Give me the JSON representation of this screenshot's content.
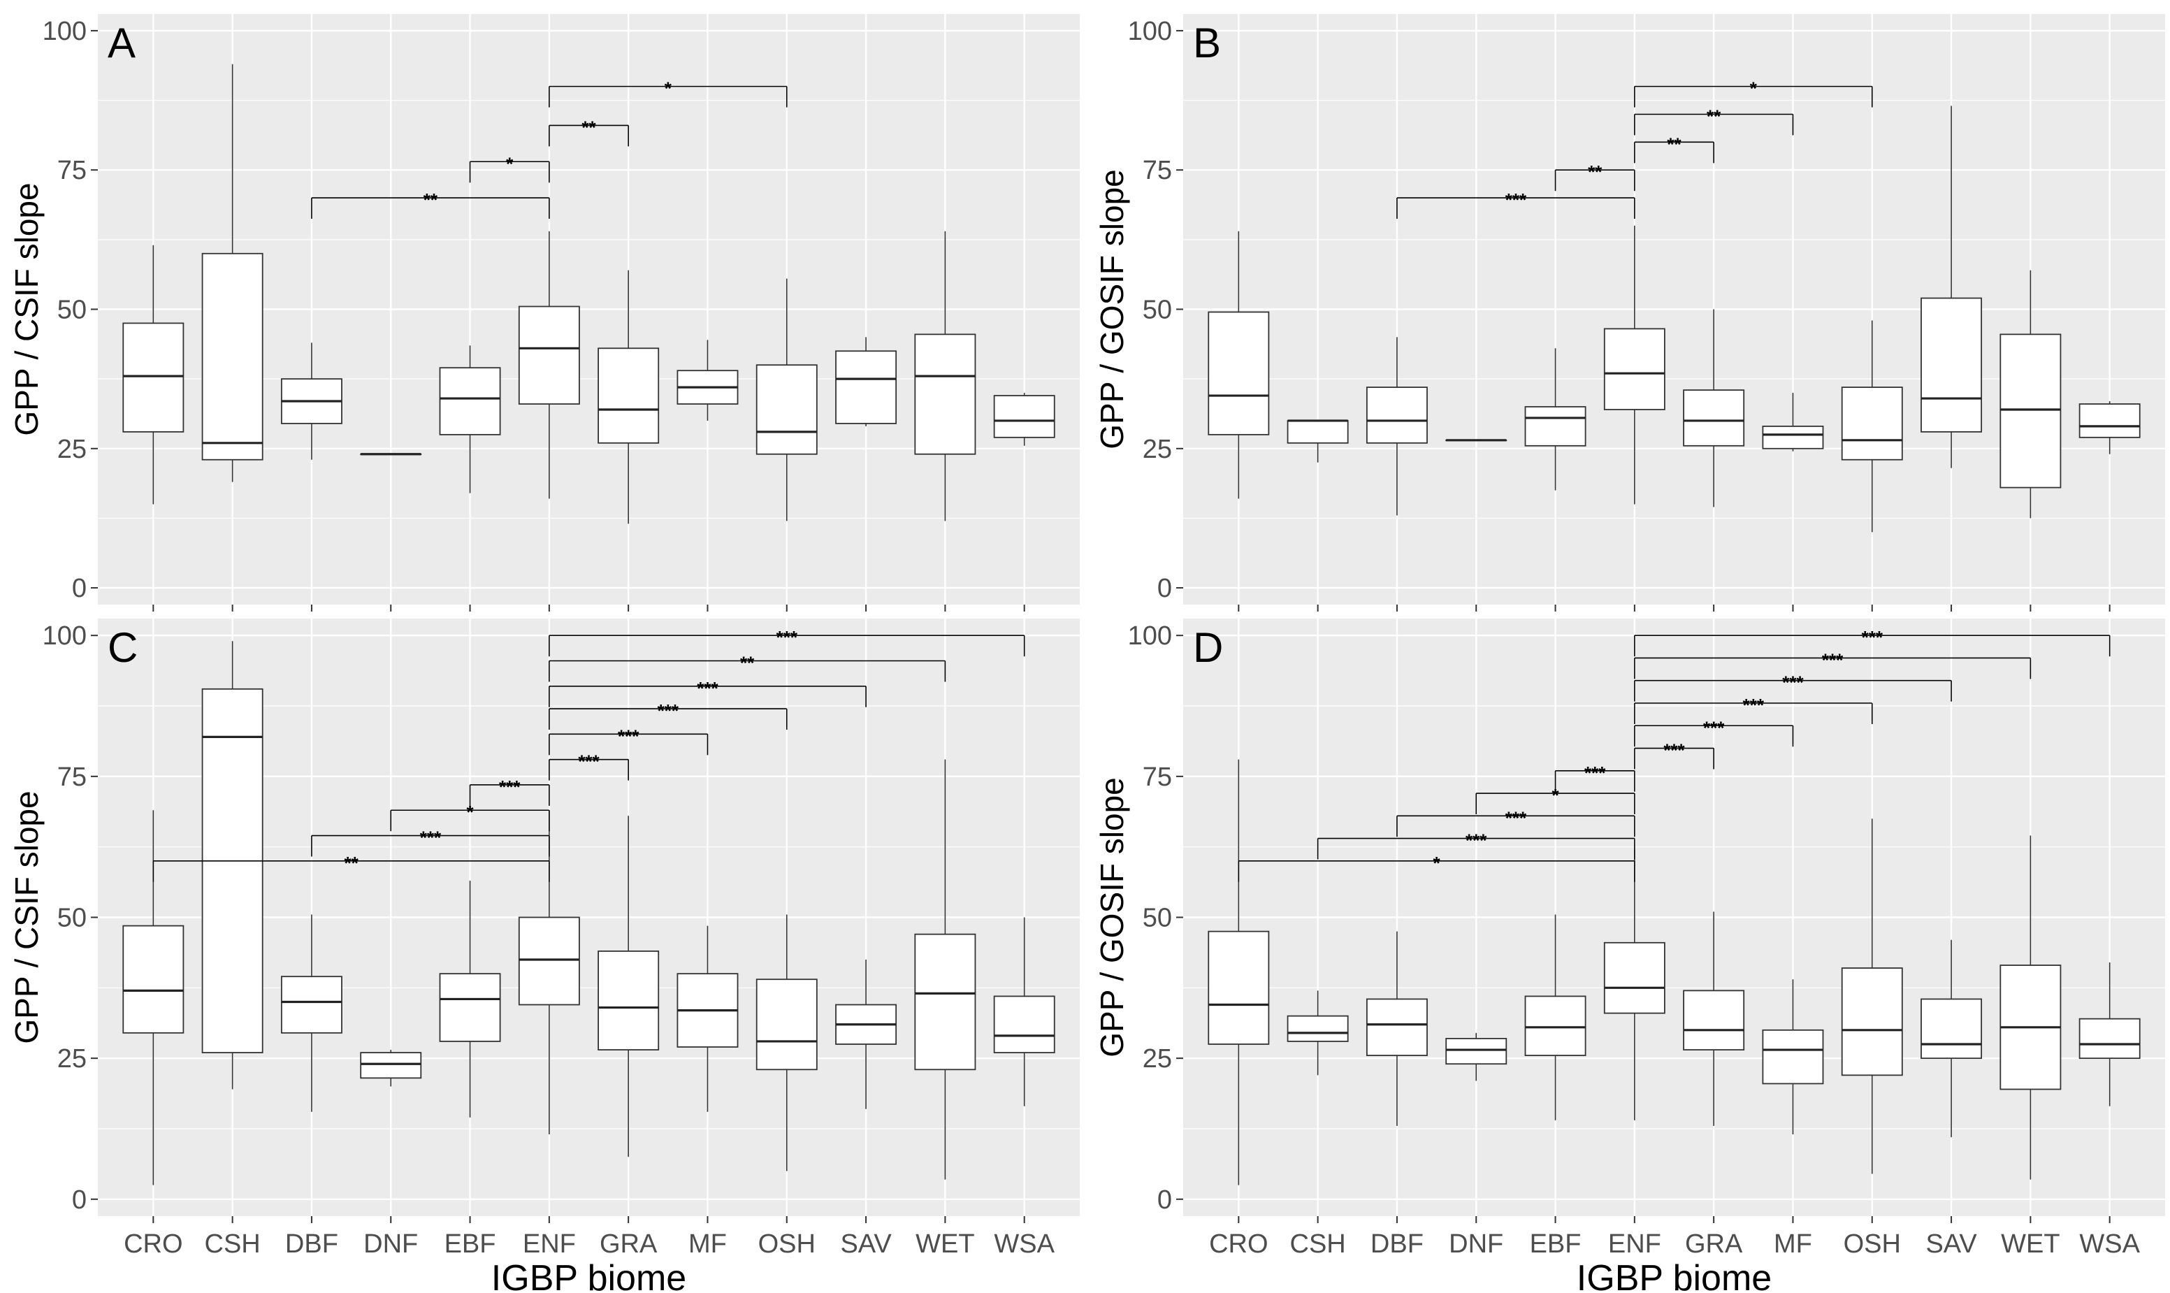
{
  "colors": {
    "panel_bg": "#ebebeb",
    "grid": "#ffffff",
    "box_fill": "#ffffff",
    "box_stroke": "#333333",
    "whisker": "#333333",
    "bracket": "#000000",
    "tick_text": "#4d4d4d"
  },
  "chart_data": [
    {
      "type": "boxplot",
      "panel_label": "A",
      "ylabel": "GPP / CSIF slope",
      "xlabel": "",
      "ylim": [
        -3,
        103
      ],
      "yticks": [
        0,
        25,
        50,
        75,
        100
      ],
      "categories": [
        "CRO",
        "CSH",
        "DBF",
        "DNF",
        "EBF",
        "ENF",
        "GRA",
        "MF",
        "OSH",
        "SAV",
        "WET",
        "WSA"
      ],
      "boxes": [
        {
          "min": 15,
          "q1": 28,
          "median": 38,
          "q3": 47.5,
          "max": 61.5
        },
        {
          "min": 19,
          "q1": 23,
          "median": 26,
          "q3": 60,
          "max": 94
        },
        {
          "min": 23,
          "q1": 29.5,
          "median": 33.5,
          "q3": 37.5,
          "max": 44
        },
        {
          "min": 24,
          "q1": 24,
          "median": 24,
          "q3": 24,
          "max": 24
        },
        {
          "min": 17,
          "q1": 27.5,
          "median": 34,
          "q3": 39.5,
          "max": 43.5
        },
        {
          "min": 16,
          "q1": 33,
          "median": 43,
          "q3": 50.5,
          "max": 64
        },
        {
          "min": 11.5,
          "q1": 26,
          "median": 32,
          "q3": 43,
          "max": 57
        },
        {
          "min": 30,
          "q1": 33,
          "median": 36,
          "q3": 39,
          "max": 44.5
        },
        {
          "min": 12,
          "q1": 24,
          "median": 28,
          "q3": 40,
          "max": 55.5
        },
        {
          "min": 29,
          "q1": 29.5,
          "median": 37.5,
          "q3": 42.5,
          "max": 45
        },
        {
          "min": 12,
          "q1": 24,
          "median": 38,
          "q3": 45.5,
          "max": 64
        },
        {
          "min": 25.5,
          "q1": 27,
          "median": 30,
          "q3": 34.5,
          "max": 35
        }
      ],
      "comparisons": [
        {
          "from": "ENF",
          "to": "OSH",
          "level": 90,
          "label": "*"
        },
        {
          "from": "ENF",
          "to": "GRA",
          "level": 83,
          "label": "**"
        },
        {
          "from": "EBF",
          "to": "ENF",
          "level": 76.5,
          "label": "*"
        },
        {
          "from": "DBF",
          "to": "ENF",
          "level": 70,
          "label": "**"
        }
      ]
    },
    {
      "type": "boxplot",
      "panel_label": "B",
      "ylabel": "GPP / GOSIF slope",
      "xlabel": "",
      "ylim": [
        -3,
        103
      ],
      "yticks": [
        0,
        25,
        50,
        75,
        100
      ],
      "categories": [
        "CRO",
        "CSH",
        "DBF",
        "DNF",
        "EBF",
        "ENF",
        "GRA",
        "MF",
        "OSH",
        "SAV",
        "WET",
        "WSA"
      ],
      "boxes": [
        {
          "min": 16,
          "q1": 27.5,
          "median": 34.5,
          "q3": 49.5,
          "max": 64
        },
        {
          "min": 22.5,
          "q1": 26,
          "median": 30,
          "q3": 30,
          "max": 30
        },
        {
          "min": 13,
          "q1": 26,
          "median": 30,
          "q3": 36,
          "max": 45
        },
        {
          "min": 26.5,
          "q1": 26.5,
          "median": 26.5,
          "q3": 26.5,
          "max": 26.5
        },
        {
          "min": 17.5,
          "q1": 25.5,
          "median": 30.5,
          "q3": 32.5,
          "max": 43
        },
        {
          "min": 15,
          "q1": 32,
          "median": 38.5,
          "q3": 46.5,
          "max": 65
        },
        {
          "min": 14.5,
          "q1": 25.5,
          "median": 30,
          "q3": 35.5,
          "max": 50
        },
        {
          "min": 24.5,
          "q1": 25,
          "median": 27.5,
          "q3": 29,
          "max": 35
        },
        {
          "min": 10,
          "q1": 23,
          "median": 26.5,
          "q3": 36,
          "max": 48
        },
        {
          "min": 21.5,
          "q1": 28,
          "median": 34,
          "q3": 52,
          "max": 86.5
        },
        {
          "min": 12.5,
          "q1": 18,
          "median": 32,
          "q3": 45.5,
          "max": 57
        },
        {
          "min": 24,
          "q1": 27,
          "median": 29,
          "q3": 33,
          "max": 33.5
        }
      ],
      "comparisons": [
        {
          "from": "ENF",
          "to": "OSH",
          "level": 90,
          "label": "*"
        },
        {
          "from": "ENF",
          "to": "MF",
          "level": 85,
          "label": "**"
        },
        {
          "from": "ENF",
          "to": "GRA",
          "level": 80,
          "label": "**"
        },
        {
          "from": "EBF",
          "to": "ENF",
          "level": 75,
          "label": "**"
        },
        {
          "from": "DBF",
          "to": "ENF",
          "level": 70,
          "label": "***"
        }
      ]
    },
    {
      "type": "boxplot",
      "panel_label": "C",
      "ylabel": "GPP / CSIF slope",
      "xlabel": "IGBP biome",
      "ylim": [
        -3,
        103
      ],
      "yticks": [
        0,
        25,
        50,
        75,
        100
      ],
      "categories": [
        "CRO",
        "CSH",
        "DBF",
        "DNF",
        "EBF",
        "ENF",
        "GRA",
        "MF",
        "OSH",
        "SAV",
        "WET",
        "WSA"
      ],
      "boxes": [
        {
          "min": 2.5,
          "q1": 29.5,
          "median": 37,
          "q3": 48.5,
          "max": 69
        },
        {
          "min": 19.5,
          "q1": 26,
          "median": 82,
          "q3": 90.5,
          "max": 99
        },
        {
          "min": 15.5,
          "q1": 29.5,
          "median": 35,
          "q3": 39.5,
          "max": 50.5
        },
        {
          "min": 20,
          "q1": 21.5,
          "median": 24,
          "q3": 26,
          "max": 26.5
        },
        {
          "min": 14.5,
          "q1": 28,
          "median": 35.5,
          "q3": 40,
          "max": 56.5
        },
        {
          "min": 11.5,
          "q1": 34.5,
          "median": 42.5,
          "q3": 50,
          "max": 69
        },
        {
          "min": 7.5,
          "q1": 26.5,
          "median": 34,
          "q3": 44,
          "max": 68
        },
        {
          "min": 15.5,
          "q1": 27,
          "median": 33.5,
          "q3": 40,
          "max": 48.5
        },
        {
          "min": 5,
          "q1": 23,
          "median": 28,
          "q3": 39,
          "max": 50.5
        },
        {
          "min": 16,
          "q1": 27.5,
          "median": 31,
          "q3": 34.5,
          "max": 42.5
        },
        {
          "min": 3.5,
          "q1": 23,
          "median": 36.5,
          "q3": 47,
          "max": 78
        },
        {
          "min": 16.5,
          "q1": 26,
          "median": 29,
          "q3": 36,
          "max": 50
        }
      ],
      "comparisons": [
        {
          "from": "ENF",
          "to": "WSA",
          "level": 100,
          "label": "***"
        },
        {
          "from": "ENF",
          "to": "WET",
          "level": 95.5,
          "label": "**"
        },
        {
          "from": "ENF",
          "to": "SAV",
          "level": 91,
          "label": "***"
        },
        {
          "from": "ENF",
          "to": "OSH",
          "level": 87,
          "label": "***"
        },
        {
          "from": "ENF",
          "to": "MF",
          "level": 82.5,
          "label": "***"
        },
        {
          "from": "ENF",
          "to": "GRA",
          "level": 78,
          "label": "***"
        },
        {
          "from": "EBF",
          "to": "ENF",
          "level": 73.5,
          "label": "***"
        },
        {
          "from": "DNF",
          "to": "ENF",
          "level": 69,
          "label": "*"
        },
        {
          "from": "DBF",
          "to": "ENF",
          "level": 64.5,
          "label": "***"
        },
        {
          "from": "CRO",
          "to": "ENF",
          "level": 60,
          "label": "**"
        }
      ]
    },
    {
      "type": "boxplot",
      "panel_label": "D",
      "ylabel": "GPP / GOSIF slope",
      "xlabel": "IGBP biome",
      "ylim": [
        -3,
        103
      ],
      "yticks": [
        0,
        25,
        50,
        75,
        100
      ],
      "categories": [
        "CRO",
        "CSH",
        "DBF",
        "DNF",
        "EBF",
        "ENF",
        "GRA",
        "MF",
        "OSH",
        "SAV",
        "WET",
        "WSA"
      ],
      "boxes": [
        {
          "min": 2.5,
          "q1": 27.5,
          "median": 34.5,
          "q3": 47.5,
          "max": 78
        },
        {
          "min": 22,
          "q1": 28,
          "median": 29.5,
          "q3": 32.5,
          "max": 37
        },
        {
          "min": 13,
          "q1": 25.5,
          "median": 31,
          "q3": 35.5,
          "max": 47.5
        },
        {
          "min": 21,
          "q1": 24,
          "median": 26.5,
          "q3": 28.5,
          "max": 29.5
        },
        {
          "min": 14,
          "q1": 25.5,
          "median": 30.5,
          "q3": 36,
          "max": 50.5
        },
        {
          "min": 14,
          "q1": 33,
          "median": 37.5,
          "q3": 45.5,
          "max": 62
        },
        {
          "min": 13,
          "q1": 26.5,
          "median": 30,
          "q3": 37,
          "max": 51
        },
        {
          "min": 11.5,
          "q1": 20.5,
          "median": 26.5,
          "q3": 30,
          "max": 39
        },
        {
          "min": 4.5,
          "q1": 22,
          "median": 30,
          "q3": 41,
          "max": 67.5
        },
        {
          "min": 11,
          "q1": 25,
          "median": 27.5,
          "q3": 35.5,
          "max": 46
        },
        {
          "min": 3.5,
          "q1": 19.5,
          "median": 30.5,
          "q3": 41.5,
          "max": 64.5
        },
        {
          "min": 16.5,
          "q1": 25,
          "median": 27.5,
          "q3": 32,
          "max": 42
        }
      ],
      "comparisons": [
        {
          "from": "ENF",
          "to": "WSA",
          "level": 100,
          "label": "***"
        },
        {
          "from": "ENF",
          "to": "WET",
          "level": 96,
          "label": "***"
        },
        {
          "from": "ENF",
          "to": "SAV",
          "level": 92,
          "label": "***"
        },
        {
          "from": "ENF",
          "to": "OSH",
          "level": 88,
          "label": "***"
        },
        {
          "from": "ENF",
          "to": "MF",
          "level": 84,
          "label": "***"
        },
        {
          "from": "ENF",
          "to": "GRA",
          "level": 80,
          "label": "***"
        },
        {
          "from": "EBF",
          "to": "ENF",
          "level": 76,
          "label": "***"
        },
        {
          "from": "DNF",
          "to": "ENF",
          "level": 72,
          "label": "*"
        },
        {
          "from": "DBF",
          "to": "ENF",
          "level": 68,
          "label": "***"
        },
        {
          "from": "CSH",
          "to": "ENF",
          "level": 64,
          "label": "***"
        },
        {
          "from": "CRO",
          "to": "ENF",
          "level": 60,
          "label": "*"
        }
      ]
    }
  ]
}
